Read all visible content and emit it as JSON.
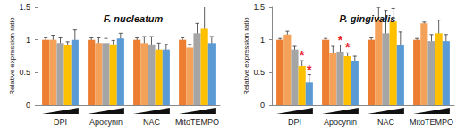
{
  "chart_data": [
    {
      "type": "bar",
      "title": "F. nucleatum",
      "ylabel": "Relative expression ratio",
      "categories": [
        "DPI",
        "Apocynin",
        "NAC",
        "MitoTEMPO"
      ],
      "series": [
        {
          "color": "#ED7D31",
          "values": [
            1.0,
            1.0,
            1.0,
            1.0
          ],
          "errors": [
            0.03,
            0.03,
            0.03,
            0.03
          ]
        },
        {
          "color": "#F4A25A",
          "values": [
            1.0,
            0.95,
            0.95,
            0.88
          ],
          "errors": [
            0.07,
            0.08,
            0.1,
            0.05
          ]
        },
        {
          "color": "#A5A5A5",
          "values": [
            0.95,
            0.95,
            0.93,
            1.1
          ],
          "errors": [
            0.08,
            0.07,
            0.12,
            0.15
          ]
        },
        {
          "color": "#FFC000",
          "values": [
            0.92,
            0.93,
            0.85,
            1.18
          ],
          "errors": [
            0.05,
            0.06,
            0.1,
            0.4
          ]
        },
        {
          "color": "#5B9BD5",
          "values": [
            1.0,
            1.02,
            0.85,
            0.95
          ],
          "errors": [
            0.15,
            0.08,
            0.08,
            0.1
          ]
        }
      ],
      "ylim": [
        0,
        1.5
      ],
      "yticks": [
        0,
        0.5,
        1,
        1.5
      ],
      "grid": false,
      "annotations": []
    },
    {
      "type": "bar",
      "title": "P. gingivalis",
      "ylabel": "Relative expression ratio",
      "categories": [
        "DPI",
        "Apocynin",
        "NAC",
        "MitoTEMPO"
      ],
      "series": [
        {
          "color": "#ED7D31",
          "values": [
            1.0,
            1.0,
            1.0,
            1.0
          ],
          "errors": [
            0.02,
            0.02,
            0.03,
            0.02
          ]
        },
        {
          "color": "#F4A25A",
          "values": [
            1.08,
            0.8,
            1.3,
            1.25
          ],
          "errors": [
            0.05,
            0.1,
            0.2,
            0.02
          ]
        },
        {
          "color": "#A5A5A5",
          "values": [
            0.85,
            0.82,
            1.1,
            0.98
          ],
          "errors": [
            0.05,
            0.1,
            0.35,
            0.1
          ]
        },
        {
          "color": "#FFC000",
          "values": [
            0.6,
            0.75,
            1.28,
            1.1
          ],
          "errors": [
            0.08,
            0.05,
            0.2,
            0.2
          ]
        },
        {
          "color": "#5B9BD5",
          "values": [
            0.35,
            0.67,
            0.92,
            0.98
          ],
          "errors": [
            0.12,
            0.08,
            0.2,
            0.1
          ]
        }
      ],
      "ylim": [
        0,
        1.5
      ],
      "yticks": [
        0,
        0.5,
        1,
        1.5
      ],
      "grid": false,
      "annotations": [
        {
          "text": "*",
          "category": "DPI",
          "series": 3
        },
        {
          "text": "*",
          "category": "DPI",
          "series": 4
        },
        {
          "text": "*",
          "category": "Apocynin",
          "series": 2
        },
        {
          "text": "*",
          "category": "Apocynin",
          "series": 3
        }
      ]
    }
  ]
}
